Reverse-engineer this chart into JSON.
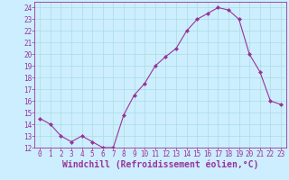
{
  "x": [
    0,
    1,
    2,
    3,
    4,
    5,
    6,
    7,
    8,
    9,
    10,
    11,
    12,
    13,
    14,
    15,
    16,
    17,
    18,
    19,
    20,
    21,
    22,
    23
  ],
  "y": [
    14.5,
    14.0,
    13.0,
    12.5,
    13.0,
    12.5,
    12.0,
    12.0,
    14.8,
    16.5,
    17.5,
    19.0,
    19.8,
    20.5,
    22.0,
    23.0,
    23.5,
    24.0,
    23.8,
    23.0,
    20.0,
    18.5,
    16.0,
    15.7
  ],
  "line_color": "#993399",
  "marker": "D",
  "marker_size": 2,
  "bg_color": "#cceeff",
  "grid_color": "#aadddd",
  "xlabel": "Windchill (Refroidissement éolien,°C)",
  "xlim": [
    -0.5,
    23.5
  ],
  "ylim": [
    12,
    24.5
  ],
  "yticks": [
    12,
    13,
    14,
    15,
    16,
    17,
    18,
    19,
    20,
    21,
    22,
    23,
    24
  ],
  "xticks": [
    0,
    1,
    2,
    3,
    4,
    5,
    6,
    7,
    8,
    9,
    10,
    11,
    12,
    13,
    14,
    15,
    16,
    17,
    18,
    19,
    20,
    21,
    22,
    23
  ],
  "tick_label_fontsize": 5.5,
  "xlabel_fontsize": 7,
  "axis_label_color": "#993399",
  "tick_color": "#993399"
}
